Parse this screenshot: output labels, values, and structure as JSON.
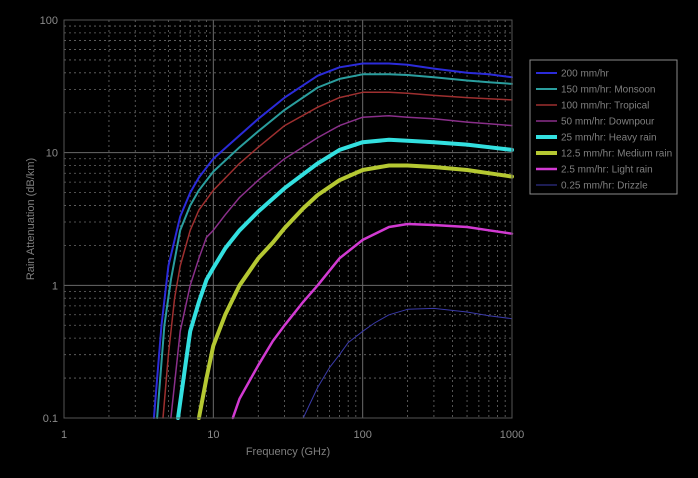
{
  "chart_data": {
    "type": "line",
    "xlabel": "Frequency (GHz)",
    "ylabel": "Rain Attenuation (dB/km)",
    "x_scale": "log",
    "y_scale": "log",
    "xlim": [
      1,
      1000
    ],
    "ylim": [
      0.1,
      100
    ],
    "x_ticks": [
      "1",
      "10",
      "100",
      "1000"
    ],
    "y_ticks": [
      "100",
      "10",
      "1",
      "0.1"
    ],
    "grid": true,
    "legend_position": "right",
    "series": [
      {
        "name": "200 mm/hr",
        "color": "#2b2bd9",
        "width": 2,
        "x": [
          4,
          4.5,
          5,
          6,
          7,
          8,
          10,
          15,
          20,
          30,
          50,
          70,
          100,
          150,
          200,
          300,
          500,
          700,
          1000
        ],
        "y": [
          0.1,
          0.5,
          1.4,
          3.3,
          5.0,
          6.5,
          9.0,
          13.5,
          18,
          26,
          38,
          44,
          47,
          47,
          46,
          43,
          40,
          39,
          37
        ]
      },
      {
        "name": "150 mm/hr: Monsoon",
        "color": "#2a9e9e",
        "width": 2,
        "x": [
          4.2,
          4.7,
          5.2,
          6,
          7,
          8,
          10,
          15,
          20,
          30,
          50,
          70,
          100,
          150,
          200,
          300,
          500,
          700,
          1000
        ],
        "y": [
          0.1,
          0.5,
          1.1,
          2.6,
          4.0,
          5.2,
          7.2,
          11,
          14.5,
          21,
          31,
          36,
          39,
          39,
          38.5,
          37,
          35,
          34,
          33
        ]
      },
      {
        "name": "100 mm/hr: Tropical",
        "color": "#9e2f2f",
        "width": 1.5,
        "x": [
          4.6,
          5,
          5.5,
          6,
          7,
          8,
          10,
          15,
          20,
          30,
          50,
          70,
          100,
          150,
          200,
          300,
          500,
          700,
          1000
        ],
        "y": [
          0.1,
          0.3,
          0.8,
          1.4,
          2.6,
          3.7,
          5.2,
          8.3,
          11,
          16,
          22,
          26,
          28.5,
          28.5,
          28,
          27,
          26,
          25.5,
          25
        ]
      },
      {
        "name": "50 mm/hr: Downpour",
        "color": "#8a2f8a",
        "width": 1.5,
        "x": [
          5.2,
          6,
          7,
          8,
          9,
          10,
          12,
          15,
          20,
          30,
          50,
          70,
          100,
          150,
          200,
          300,
          500,
          700,
          1000
        ],
        "y": [
          0.1,
          0.45,
          1.0,
          1.6,
          2.3,
          2.6,
          3.4,
          4.6,
          6.2,
          9.0,
          13,
          16,
          18.5,
          19,
          18.5,
          18,
          17,
          16.5,
          16
        ]
      },
      {
        "name": "25 mm/hr: Heavy rain",
        "color": "#33e0e0",
        "width": 4,
        "x": [
          5.8,
          6.5,
          7,
          8,
          9,
          10,
          12,
          15,
          20,
          30,
          50,
          70,
          100,
          150,
          200,
          300,
          500,
          700,
          1000
        ],
        "y": [
          0.1,
          0.25,
          0.45,
          0.75,
          1.1,
          1.35,
          1.9,
          2.6,
          3.6,
          5.4,
          8.3,
          10.5,
          12,
          12.5,
          12.3,
          12,
          11.5,
          11,
          10.5
        ]
      },
      {
        "name": "12.5 mm/hr: Medium rain",
        "color": "#b5c832",
        "width": 4,
        "x": [
          8,
          9,
          10,
          12,
          15,
          20,
          25,
          30,
          40,
          50,
          70,
          100,
          150,
          200,
          300,
          500,
          700,
          1000
        ],
        "y": [
          0.1,
          0.2,
          0.35,
          0.6,
          1.0,
          1.6,
          2.1,
          2.7,
          3.8,
          4.8,
          6.2,
          7.4,
          8.0,
          8.0,
          7.8,
          7.4,
          7.0,
          6.6
        ]
      },
      {
        "name": "2.5 mm/hr: Light rain",
        "color": "#d23ad2",
        "width": 2.5,
        "x": [
          13.5,
          15,
          20,
          25,
          30,
          40,
          50,
          70,
          100,
          150,
          200,
          300,
          500,
          700,
          1000
        ],
        "y": [
          0.1,
          0.14,
          0.25,
          0.38,
          0.5,
          0.75,
          1.0,
          1.6,
          2.2,
          2.75,
          2.9,
          2.85,
          2.75,
          2.6,
          2.45
        ]
      },
      {
        "name": "0.25 mm/hr: Drizzle",
        "color": "#3a3aa8",
        "width": 1,
        "x": [
          40,
          50,
          60,
          70,
          80,
          100,
          120,
          150,
          200,
          300,
          500,
          700,
          1000
        ],
        "y": [
          0.1,
          0.17,
          0.24,
          0.3,
          0.37,
          0.45,
          0.52,
          0.6,
          0.66,
          0.67,
          0.63,
          0.59,
          0.56
        ]
      }
    ]
  }
}
